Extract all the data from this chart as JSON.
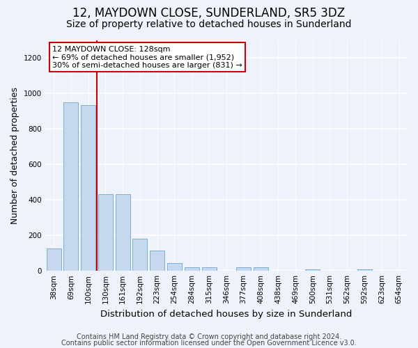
{
  "title": "12, MAYDOWN CLOSE, SUNDERLAND, SR5 3DZ",
  "subtitle": "Size of property relative to detached houses in Sunderland",
  "xlabel": "Distribution of detached houses by size in Sunderland",
  "ylabel": "Number of detached properties",
  "categories": [
    "38sqm",
    "69sqm",
    "100sqm",
    "130sqm",
    "161sqm",
    "192sqm",
    "223sqm",
    "254sqm",
    "284sqm",
    "315sqm",
    "346sqm",
    "377sqm",
    "408sqm",
    "438sqm",
    "469sqm",
    "500sqm",
    "531sqm",
    "562sqm",
    "592sqm",
    "623sqm",
    "654sqm"
  ],
  "values": [
    125,
    950,
    935,
    430,
    430,
    180,
    115,
    45,
    20,
    20,
    0,
    20,
    20,
    0,
    0,
    10,
    0,
    0,
    10,
    0,
    0
  ],
  "bar_color": "#c5d8ee",
  "bar_edge_color": "#7aafd4",
  "property_line_color": "#cc0000",
  "annotation_text": "12 MAYDOWN CLOSE: 128sqm\n← 69% of detached houses are smaller (1,952)\n30% of semi-detached houses are larger (831) →",
  "annotation_box_color": "#ffffff",
  "annotation_box_edge_color": "#cc0000",
  "ylim": [
    0,
    1300
  ],
  "yticks": [
    0,
    200,
    400,
    600,
    800,
    1000,
    1200
  ],
  "background_color": "#eef2fa",
  "grid_color": "#ffffff",
  "footer1": "Contains HM Land Registry data © Crown copyright and database right 2024.",
  "footer2": "Contains public sector information licensed under the Open Government Licence v3.0.",
  "title_fontsize": 12,
  "subtitle_fontsize": 10,
  "xlabel_fontsize": 9.5,
  "ylabel_fontsize": 9,
  "tick_fontsize": 7.5,
  "annotation_fontsize": 8,
  "footer_fontsize": 7
}
